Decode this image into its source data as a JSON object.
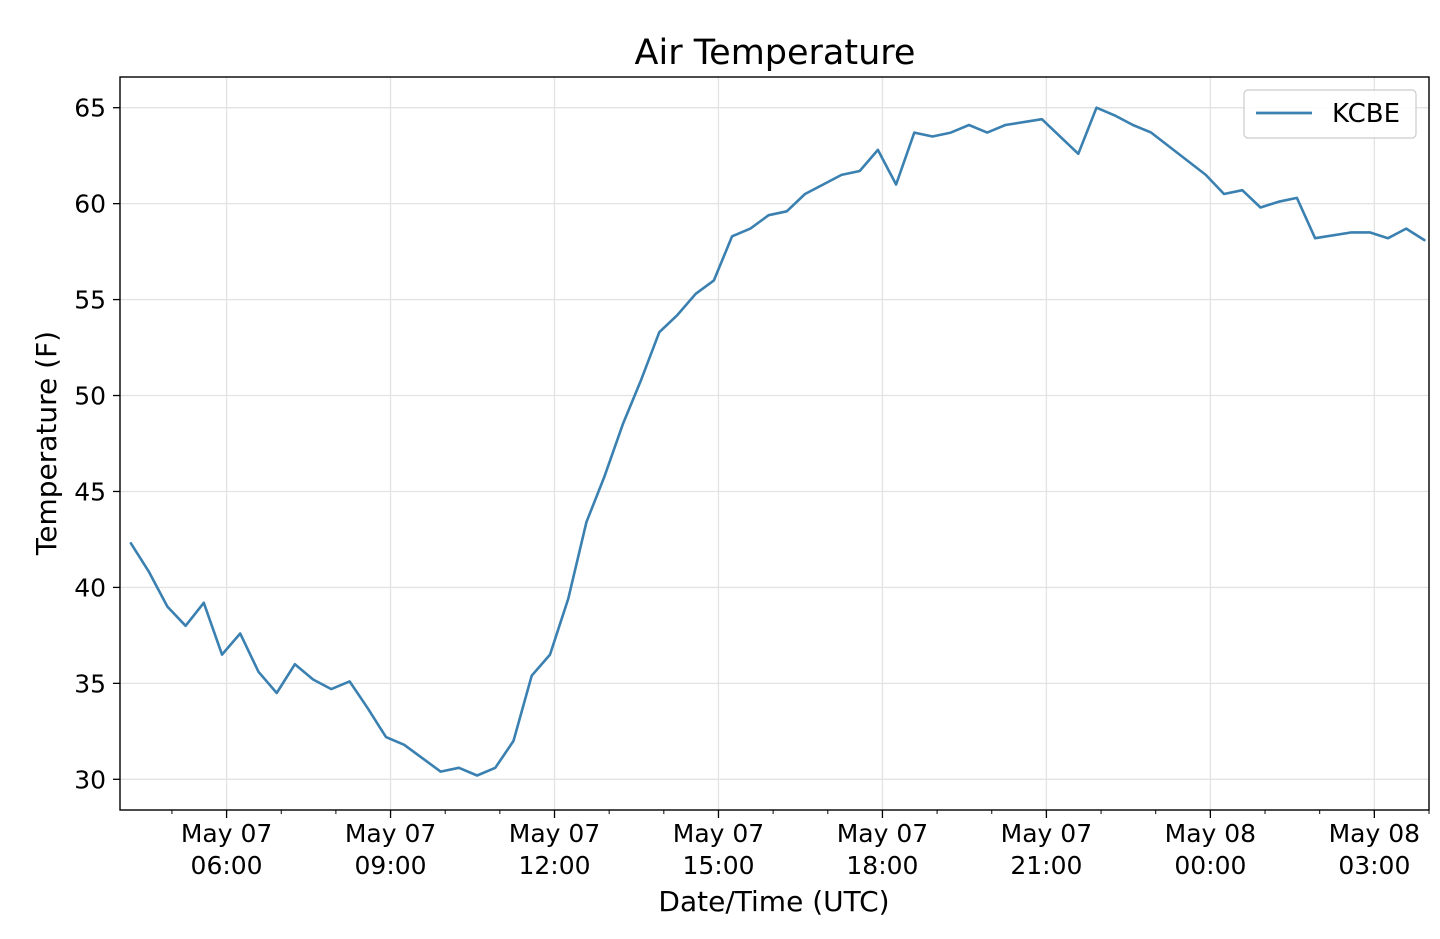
{
  "chart_data": {
    "type": "line",
    "title": "Air Temperature",
    "xlabel": "Date/Time (UTC)",
    "ylabel": "Temperature (F)",
    "ylim": [
      28.4,
      66.6
    ],
    "yticks": [
      30,
      35,
      40,
      45,
      50,
      55,
      60,
      65
    ],
    "xlim": [
      "2019-05-07T04:03",
      "2019-05-08T04:00"
    ],
    "xticks": [
      {
        "t": "2019-05-07T06:00",
        "line1": "May 07",
        "line2": "06:00"
      },
      {
        "t": "2019-05-07T09:00",
        "line1": "May 07",
        "line2": "09:00"
      },
      {
        "t": "2019-05-07T12:00",
        "line1": "May 07",
        "line2": "12:00"
      },
      {
        "t": "2019-05-07T15:00",
        "line1": "May 07",
        "line2": "15:00"
      },
      {
        "t": "2019-05-07T18:00",
        "line1": "May 07",
        "line2": "18:00"
      },
      {
        "t": "2019-05-07T21:00",
        "line1": "May 07",
        "line2": "21:00"
      },
      {
        "t": "2019-05-08T00:00",
        "line1": "May 08",
        "line2": "00:00"
      },
      {
        "t": "2019-05-08T03:00",
        "line1": "May 08",
        "line2": "03:00"
      }
    ],
    "grid": true,
    "legend_position": "top-right",
    "series": [
      {
        "name": "KCBE",
        "color": "#3a80b0",
        "points": [
          [
            "2019-05-07T04:15",
            42.3
          ],
          [
            "2019-05-07T04:35",
            40.8
          ],
          [
            "2019-05-07T04:55",
            39.0
          ],
          [
            "2019-05-07T05:15",
            38.0
          ],
          [
            "2019-05-07T05:35",
            39.2
          ],
          [
            "2019-05-07T05:55",
            36.5
          ],
          [
            "2019-05-07T06:15",
            37.6
          ],
          [
            "2019-05-07T06:35",
            35.6
          ],
          [
            "2019-05-07T06:55",
            34.5
          ],
          [
            "2019-05-07T07:15",
            36.0
          ],
          [
            "2019-05-07T07:35",
            35.2
          ],
          [
            "2019-05-07T07:55",
            34.7
          ],
          [
            "2019-05-07T08:15",
            35.1
          ],
          [
            "2019-05-07T08:35",
            33.7
          ],
          [
            "2019-05-07T08:55",
            32.2
          ],
          [
            "2019-05-07T09:15",
            31.8
          ],
          [
            "2019-05-07T09:35",
            31.1
          ],
          [
            "2019-05-07T09:55",
            30.4
          ],
          [
            "2019-05-07T10:15",
            30.6
          ],
          [
            "2019-05-07T10:35",
            30.2
          ],
          [
            "2019-05-07T10:55",
            30.6
          ],
          [
            "2019-05-07T11:15",
            32.0
          ],
          [
            "2019-05-07T11:35",
            35.4
          ],
          [
            "2019-05-07T11:55",
            36.5
          ],
          [
            "2019-05-07T12:15",
            39.4
          ],
          [
            "2019-05-07T12:35",
            43.4
          ],
          [
            "2019-05-07T12:55",
            45.8
          ],
          [
            "2019-05-07T13:15",
            48.5
          ],
          [
            "2019-05-07T13:35",
            50.8
          ],
          [
            "2019-05-07T13:55",
            53.3
          ],
          [
            "2019-05-07T14:15",
            54.2
          ],
          [
            "2019-05-07T14:35",
            55.3
          ],
          [
            "2019-05-07T14:55",
            56.0
          ],
          [
            "2019-05-07T15:15",
            58.3
          ],
          [
            "2019-05-07T15:35",
            58.7
          ],
          [
            "2019-05-07T15:55",
            59.4
          ],
          [
            "2019-05-07T16:15",
            59.6
          ],
          [
            "2019-05-07T16:35",
            60.5
          ],
          [
            "2019-05-07T16:55",
            61.0
          ],
          [
            "2019-05-07T17:15",
            61.5
          ],
          [
            "2019-05-07T17:35",
            61.7
          ],
          [
            "2019-05-07T17:55",
            62.8
          ],
          [
            "2019-05-07T18:15",
            61.0
          ],
          [
            "2019-05-07T18:35",
            63.7
          ],
          [
            "2019-05-07T18:55",
            63.5
          ],
          [
            "2019-05-07T19:15",
            63.7
          ],
          [
            "2019-05-07T19:35",
            64.1
          ],
          [
            "2019-05-07T19:55",
            63.7
          ],
          [
            "2019-05-07T20:15",
            64.1
          ],
          [
            "2019-05-07T20:55",
            64.4
          ],
          [
            "2019-05-07T21:35",
            62.6
          ],
          [
            "2019-05-07T21:55",
            65.0
          ],
          [
            "2019-05-07T22:15",
            64.6
          ],
          [
            "2019-05-07T22:35",
            64.1
          ],
          [
            "2019-05-07T22:55",
            63.7
          ],
          [
            "2019-05-07T23:55",
            61.5
          ],
          [
            "2019-05-08T00:15",
            60.5
          ],
          [
            "2019-05-08T00:35",
            60.7
          ],
          [
            "2019-05-08T00:55",
            59.8
          ],
          [
            "2019-05-08T01:15",
            60.1
          ],
          [
            "2019-05-08T01:35",
            60.3
          ],
          [
            "2019-05-08T01:55",
            58.2
          ],
          [
            "2019-05-08T02:35",
            58.5
          ],
          [
            "2019-05-08T02:55",
            58.5
          ],
          [
            "2019-05-08T03:15",
            58.2
          ],
          [
            "2019-05-08T03:35",
            58.7
          ],
          [
            "2019-05-08T03:55",
            58.1
          ]
        ]
      }
    ]
  }
}
